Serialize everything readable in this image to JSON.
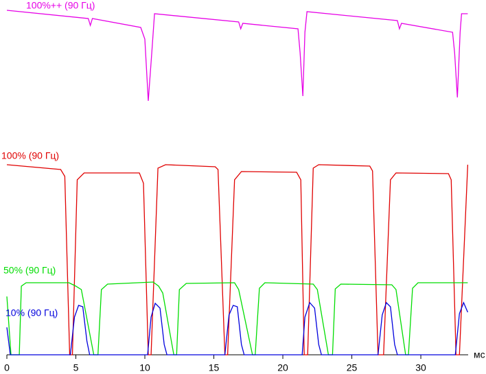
{
  "chart_data": {
    "type": "line",
    "xlabel": "мс",
    "xlim": [
      0,
      33.43
    ],
    "ylim": [
      0,
      517
    ],
    "xticks": [
      0,
      5,
      10,
      15,
      20,
      25,
      30
    ],
    "series": [
      {
        "name": "100%++ (90 Гц)",
        "color": "#e600e6",
        "x": [
          0,
          5.9,
          6.05,
          6.2,
          9.7,
          10.0,
          10.25,
          10.5,
          10.7,
          16.8,
          16.95,
          17.1,
          21.1,
          21.25,
          21.45,
          21.6,
          21.75,
          28.3,
          28.45,
          28.6,
          32.3,
          32.45,
          32.65,
          32.85,
          32.95,
          33.4
        ],
        "values": [
          502,
          490,
          480,
          490,
          477,
          460,
          370,
          440,
          497,
          485,
          475,
          483,
          475,
          440,
          377,
          470,
          500,
          487,
          475,
          483,
          470,
          440,
          375,
          470,
          497,
          497
        ]
      },
      {
        "name": "100% (90 Гц)",
        "color": "#e00000",
        "x": [
          0,
          3.9,
          4.2,
          4.55,
          4.75,
          5.1,
          5.6,
          9.6,
          9.9,
          10.25,
          10.45,
          10.95,
          11.5,
          15.1,
          15.3,
          15.8,
          16.0,
          16.5,
          17,
          21.0,
          21.3,
          21.55,
          21.8,
          22.2,
          22.6,
          26.3,
          26.5,
          26.9,
          27.3,
          27.8,
          28.2,
          32.0,
          32.2,
          32.55,
          32.8,
          33.4
        ],
        "values": [
          277,
          270,
          260,
          0,
          0,
          255,
          265,
          265,
          250,
          0,
          0,
          272,
          277,
          274,
          270,
          0,
          0,
          255,
          267,
          266,
          255,
          0,
          0,
          272,
          277,
          275,
          268,
          0,
          0,
          255,
          265,
          264,
          255,
          0,
          0,
          277
        ]
      },
      {
        "name": "50% (90 Гц)",
        "color": "#00dd00",
        "x": [
          0,
          0.3,
          0.9,
          1.05,
          1.4,
          4.5,
          5.0,
          5.4,
          6.3,
          6.6,
          6.85,
          7.3,
          10.6,
          11.0,
          11.3,
          12.1,
          12.3,
          12.5,
          13,
          16.5,
          16.8,
          17.8,
          18.0,
          18.3,
          18.7,
          22.2,
          22.5,
          23.3,
          23.6,
          23.8,
          24.2,
          27.9,
          28.2,
          28.9,
          29.1,
          29.4,
          29.8,
          33.4
        ],
        "values": [
          85,
          0,
          0,
          100,
          105,
          105,
          100,
          95,
          0,
          0,
          95,
          103,
          106,
          100,
          90,
          0,
          0,
          95,
          104,
          105,
          95,
          0,
          0,
          97,
          105,
          103,
          95,
          0,
          0,
          96,
          103,
          102,
          95,
          0,
          0,
          97,
          105,
          105
        ]
      },
      {
        "name": "10% (90 Гц)",
        "color": "#0000dd",
        "x": [
          0,
          0.25,
          4.6,
          4.9,
          5.2,
          5.5,
          5.8,
          6.0,
          10.2,
          10.45,
          10.75,
          11.1,
          11.4,
          11.6,
          15.8,
          16.1,
          16.4,
          16.7,
          17.0,
          17.2,
          21.4,
          21.6,
          21.95,
          22.3,
          22.6,
          22.8,
          26.9,
          27.2,
          27.5,
          27.8,
          28.1,
          28.3,
          32.5,
          32.8,
          33.1,
          33.4
        ],
        "values": [
          40,
          0,
          0,
          55,
          72,
          70,
          20,
          0,
          0,
          55,
          75,
          68,
          15,
          0,
          0,
          58,
          72,
          70,
          15,
          0,
          0,
          55,
          76,
          68,
          15,
          0,
          0,
          58,
          76,
          70,
          15,
          0,
          0,
          60,
          76,
          62
        ]
      }
    ]
  }
}
